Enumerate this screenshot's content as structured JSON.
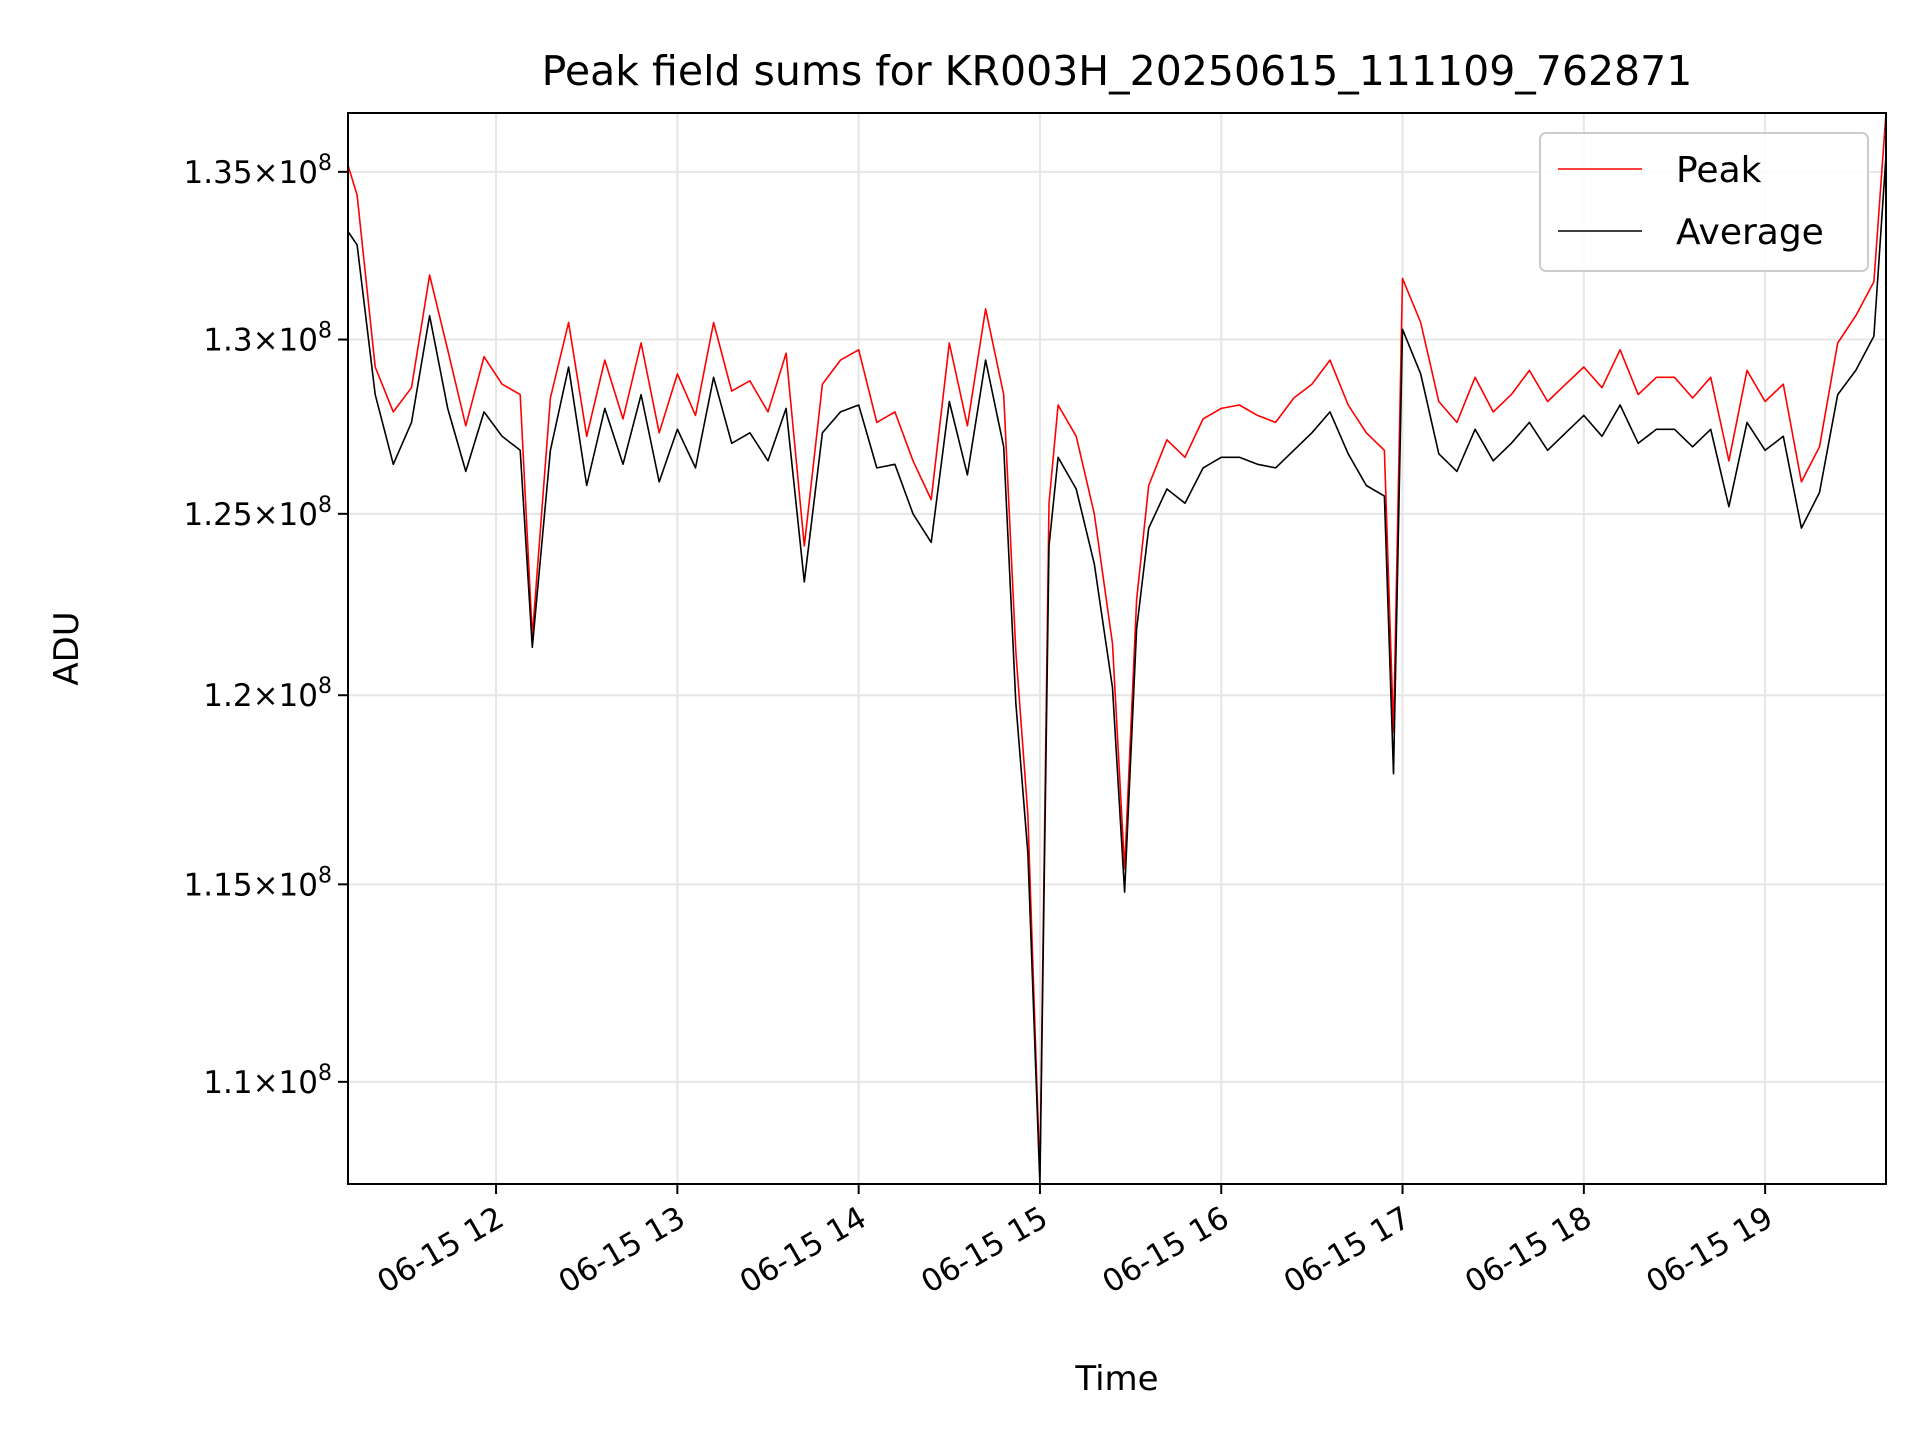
{
  "chart_data": {
    "type": "line",
    "title": "Peak field sums for KR003H_20250615_111109_762871",
    "xlabel": "Time",
    "ylabel": "ADU",
    "y_scale": "log",
    "x_range": [
      "2025-06-15 11:11",
      "2025-06-15 19:40"
    ],
    "ylim": [
      107500000,
      136800000
    ],
    "grid": true,
    "legend_position": "top-right",
    "x_ticks": [
      {
        "value": "2025-06-15 12:00",
        "label": "06-15 12"
      },
      {
        "value": "2025-06-15 13:00",
        "label": "06-15 13"
      },
      {
        "value": "2025-06-15 14:00",
        "label": "06-15 14"
      },
      {
        "value": "2025-06-15 15:00",
        "label": "06-15 15"
      },
      {
        "value": "2025-06-15 16:00",
        "label": "06-15 16"
      },
      {
        "value": "2025-06-15 17:00",
        "label": "06-15 17"
      },
      {
        "value": "2025-06-15 18:00",
        "label": "06-15 18"
      },
      {
        "value": "2025-06-15 19:00",
        "label": "06-15 19"
      }
    ],
    "y_ticks": [
      {
        "value": 110000000,
        "mantissa": "1.1",
        "exponent": "8"
      },
      {
        "value": 115000000,
        "mantissa": "1.15",
        "exponent": "8"
      },
      {
        "value": 120000000,
        "mantissa": "1.2",
        "exponent": "8"
      },
      {
        "value": 125000000,
        "mantissa": "1.25",
        "exponent": "8"
      },
      {
        "value": 130000000,
        "mantissa": "1.3",
        "exponent": "8"
      },
      {
        "value": 135000000,
        "mantissa": "1.35",
        "exponent": "8"
      }
    ],
    "series": [
      {
        "name": "Peak",
        "color": "#ff0000",
        "x": [
          "2025-06-15 11:11",
          "2025-06-15 11:14",
          "2025-06-15 11:20",
          "2025-06-15 11:26",
          "2025-06-15 11:32",
          "2025-06-15 11:38",
          "2025-06-15 11:44",
          "2025-06-15 11:50",
          "2025-06-15 11:56",
          "2025-06-15 12:02",
          "2025-06-15 12:08",
          "2025-06-15 12:12",
          "2025-06-15 12:18",
          "2025-06-15 12:24",
          "2025-06-15 12:30",
          "2025-06-15 12:36",
          "2025-06-15 12:42",
          "2025-06-15 12:48",
          "2025-06-15 12:54",
          "2025-06-15 13:00",
          "2025-06-15 13:06",
          "2025-06-15 13:12",
          "2025-06-15 13:18",
          "2025-06-15 13:24",
          "2025-06-15 13:30",
          "2025-06-15 13:36",
          "2025-06-15 13:42",
          "2025-06-15 13:48",
          "2025-06-15 13:54",
          "2025-06-15 14:00",
          "2025-06-15 14:06",
          "2025-06-15 14:12",
          "2025-06-15 14:18",
          "2025-06-15 14:24",
          "2025-06-15 14:30",
          "2025-06-15 14:36",
          "2025-06-15 14:42",
          "2025-06-15 14:48",
          "2025-06-15 14:52",
          "2025-06-15 14:56",
          "2025-06-15 15:00",
          "2025-06-15 15:03",
          "2025-06-15 15:06",
          "2025-06-15 15:12",
          "2025-06-15 15:18",
          "2025-06-15 15:24",
          "2025-06-15 15:28",
          "2025-06-15 15:32",
          "2025-06-15 15:36",
          "2025-06-15 15:42",
          "2025-06-15 15:48",
          "2025-06-15 15:54",
          "2025-06-15 16:00",
          "2025-06-15 16:06",
          "2025-06-15 16:12",
          "2025-06-15 16:18",
          "2025-06-15 16:24",
          "2025-06-15 16:30",
          "2025-06-15 16:36",
          "2025-06-15 16:42",
          "2025-06-15 16:48",
          "2025-06-15 16:54",
          "2025-06-15 16:57",
          "2025-06-15 17:00",
          "2025-06-15 17:06",
          "2025-06-15 17:12",
          "2025-06-15 17:18",
          "2025-06-15 17:24",
          "2025-06-15 17:30",
          "2025-06-15 17:36",
          "2025-06-15 17:42",
          "2025-06-15 17:48",
          "2025-06-15 17:54",
          "2025-06-15 18:00",
          "2025-06-15 18:06",
          "2025-06-15 18:12",
          "2025-06-15 18:18",
          "2025-06-15 18:24",
          "2025-06-15 18:30",
          "2025-06-15 18:36",
          "2025-06-15 18:42",
          "2025-06-15 18:48",
          "2025-06-15 18:54",
          "2025-06-15 19:00",
          "2025-06-15 19:06",
          "2025-06-15 19:12",
          "2025-06-15 19:18",
          "2025-06-15 19:24",
          "2025-06-15 19:30",
          "2025-06-15 19:36",
          "2025-06-15 19:40"
        ],
        "values": [
          135200000,
          134300000,
          129200000,
          127900000,
          128600000,
          131900000,
          129700000,
          127500000,
          129500000,
          128700000,
          128400000,
          121600000,
          128300000,
          130500000,
          127200000,
          129400000,
          127700000,
          129900000,
          127300000,
          129000000,
          127800000,
          130500000,
          128500000,
          128800000,
          127900000,
          129600000,
          124100000,
          128700000,
          129400000,
          129700000,
          127600000,
          127900000,
          126500000,
          125400000,
          129900000,
          127500000,
          130900000,
          128400000,
          121200000,
          116800000,
          107700000,
          125300000,
          128100000,
          127200000,
          125000000,
          121400000,
          115400000,
          122600000,
          125800000,
          127100000,
          126600000,
          127700000,
          128000000,
          128100000,
          127800000,
          127600000,
          128300000,
          128700000,
          129400000,
          128100000,
          127300000,
          126800000,
          119000000,
          131800000,
          130500000,
          128200000,
          127600000,
          128900000,
          127900000,
          128400000,
          129100000,
          128200000,
          128700000,
          129200000,
          128600000,
          129700000,
          128400000,
          128900000,
          128900000,
          128300000,
          128900000,
          126500000,
          129100000,
          128200000,
          128700000,
          125900000,
          126900000,
          129900000,
          130700000,
          131700000,
          136800000
        ]
      },
      {
        "name": "Average",
        "color": "#000000",
        "x": [
          "2025-06-15 11:11",
          "2025-06-15 11:14",
          "2025-06-15 11:20",
          "2025-06-15 11:26",
          "2025-06-15 11:32",
          "2025-06-15 11:38",
          "2025-06-15 11:44",
          "2025-06-15 11:50",
          "2025-06-15 11:56",
          "2025-06-15 12:02",
          "2025-06-15 12:08",
          "2025-06-15 12:12",
          "2025-06-15 12:18",
          "2025-06-15 12:24",
          "2025-06-15 12:30",
          "2025-06-15 12:36",
          "2025-06-15 12:42",
          "2025-06-15 12:48",
          "2025-06-15 12:54",
          "2025-06-15 13:00",
          "2025-06-15 13:06",
          "2025-06-15 13:12",
          "2025-06-15 13:18",
          "2025-06-15 13:24",
          "2025-06-15 13:30",
          "2025-06-15 13:36",
          "2025-06-15 13:42",
          "2025-06-15 13:48",
          "2025-06-15 13:54",
          "2025-06-15 14:00",
          "2025-06-15 14:06",
          "2025-06-15 14:12",
          "2025-06-15 14:18",
          "2025-06-15 14:24",
          "2025-06-15 14:30",
          "2025-06-15 14:36",
          "2025-06-15 14:42",
          "2025-06-15 14:48",
          "2025-06-15 14:52",
          "2025-06-15 14:56",
          "2025-06-15 15:00",
          "2025-06-15 15:03",
          "2025-06-15 15:06",
          "2025-06-15 15:12",
          "2025-06-15 15:18",
          "2025-06-15 15:24",
          "2025-06-15 15:28",
          "2025-06-15 15:32",
          "2025-06-15 15:36",
          "2025-06-15 15:42",
          "2025-06-15 15:48",
          "2025-06-15 15:54",
          "2025-06-15 16:00",
          "2025-06-15 16:06",
          "2025-06-15 16:12",
          "2025-06-15 16:18",
          "2025-06-15 16:24",
          "2025-06-15 16:30",
          "2025-06-15 16:36",
          "2025-06-15 16:42",
          "2025-06-15 16:48",
          "2025-06-15 16:54",
          "2025-06-15 16:57",
          "2025-06-15 17:00",
          "2025-06-15 17:06",
          "2025-06-15 17:12",
          "2025-06-15 17:18",
          "2025-06-15 17:24",
          "2025-06-15 17:30",
          "2025-06-15 17:36",
          "2025-06-15 17:42",
          "2025-06-15 17:48",
          "2025-06-15 17:54",
          "2025-06-15 18:00",
          "2025-06-15 18:06",
          "2025-06-15 18:12",
          "2025-06-15 18:18",
          "2025-06-15 18:24",
          "2025-06-15 18:30",
          "2025-06-15 18:36",
          "2025-06-15 18:42",
          "2025-06-15 18:48",
          "2025-06-15 18:54",
          "2025-06-15 19:00",
          "2025-06-15 19:06",
          "2025-06-15 19:12",
          "2025-06-15 19:18",
          "2025-06-15 19:24",
          "2025-06-15 19:30",
          "2025-06-15 19:36",
          "2025-06-15 19:40"
        ],
        "values": [
          133200000,
          132800000,
          128400000,
          126400000,
          127600000,
          130700000,
          128000000,
          126200000,
          127900000,
          127200000,
          126800000,
          121300000,
          126800000,
          129200000,
          125800000,
          128000000,
          126400000,
          128400000,
          125900000,
          127400000,
          126300000,
          128900000,
          127000000,
          127300000,
          126500000,
          128000000,
          123100000,
          127300000,
          127900000,
          128100000,
          126300000,
          126400000,
          125000000,
          124200000,
          128200000,
          126100000,
          129400000,
          126900000,
          119800000,
          115800000,
          107500000,
          124100000,
          126600000,
          125700000,
          123600000,
          120200000,
          114800000,
          121800000,
          124600000,
          125700000,
          125300000,
          126300000,
          126600000,
          126600000,
          126400000,
          126300000,
          126800000,
          127300000,
          127900000,
          126700000,
          125800000,
          125500000,
          117900000,
          130300000,
          129000000,
          126700000,
          126200000,
          127400000,
          126500000,
          127000000,
          127600000,
          126800000,
          127300000,
          127800000,
          127200000,
          128100000,
          127000000,
          127400000,
          127400000,
          126900000,
          127400000,
          125200000,
          127600000,
          126800000,
          127200000,
          124600000,
          125600000,
          128400000,
          129100000,
          130100000,
          135500000
        ]
      }
    ]
  }
}
